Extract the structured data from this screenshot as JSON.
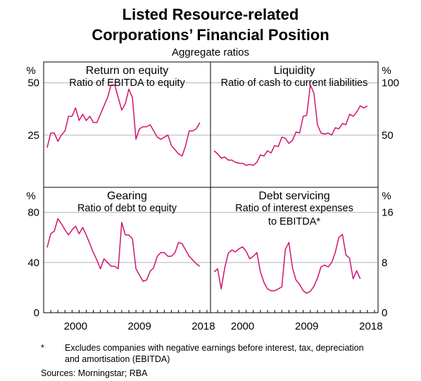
{
  "title_line1": "Listed Resource-related",
  "title_line2": "Corporations’ Financial Position",
  "subtitle": "Aggregate ratios",
  "line_color": "#d0146f",
  "footnote_marker": "*",
  "footnote_text": "Excludes companies with negative earnings before interest, tax, depreciation and amortisation (EBITDA)",
  "sources": "Sources:  Morningstar; RBA",
  "x_ticks": [
    "2000",
    "2009",
    "2018"
  ],
  "chart_data": [
    {
      "type": "line",
      "title": "Return on equity",
      "subtitle": [
        "Ratio of EBITDA to equity"
      ],
      "unit": "%",
      "axis_side": "left",
      "ylim": [
        0,
        60
      ],
      "yticks": [
        "25",
        "50"
      ],
      "ytick_values": [
        25,
        50
      ],
      "x": [
        1996.5,
        1997,
        1997.5,
        1998,
        1998.5,
        1999,
        1999.5,
        2000,
        2000.5,
        2001,
        2001.5,
        2002,
        2002.5,
        2003,
        2003.5,
        2004,
        2004.5,
        2005,
        2005.5,
        2006,
        2006.5,
        2007,
        2007.5,
        2008,
        2008.5,
        2009,
        2009.5,
        2010,
        2010.5,
        2011,
        2011.5,
        2012,
        2012.5,
        2013,
        2013.5,
        2014,
        2014.5,
        2015,
        2015.5,
        2016,
        2016.5,
        2017,
        2017.5,
        2018,
        2018.5
      ],
      "values": [
        19,
        26,
        26,
        22,
        25,
        27,
        34,
        34,
        38,
        32,
        35,
        32,
        34,
        31,
        31,
        35,
        39,
        43,
        49,
        49,
        43,
        37,
        40,
        47,
        43,
        23,
        28,
        29,
        29,
        30,
        27,
        24,
        23,
        24,
        25,
        20,
        18,
        16,
        15,
        20,
        27,
        27,
        28,
        31,
        null
      ],
      "series": [
        {
          "name": ""
        }
      ]
    },
    {
      "type": "line",
      "title": "Liquidity",
      "subtitle": [
        "Ratio of cash to current liabilities"
      ],
      "unit": "%",
      "axis_side": "right",
      "ylim": [
        0,
        120
      ],
      "yticks": [
        "50",
        "100"
      ],
      "ytick_values": [
        50,
        100
      ],
      "x": [
        1996.5,
        1997,
        1997.5,
        1998,
        1998.5,
        1999,
        1999.5,
        2000,
        2000.5,
        2001,
        2001.5,
        2002,
        2002.5,
        2003,
        2003.5,
        2004,
        2004.5,
        2005,
        2005.5,
        2006,
        2006.5,
        2007,
        2007.5,
        2008,
        2008.5,
        2009,
        2009.5,
        2010,
        2010.5,
        2011,
        2011.5,
        2012,
        2012.5,
        2013,
        2013.5,
        2014,
        2014.5,
        2015,
        2015.5,
        2016,
        2016.5,
        2017,
        2017.5,
        2018,
        2018.5
      ],
      "values": [
        35,
        32,
        28,
        29,
        26,
        26,
        24,
        23,
        23,
        21,
        22,
        21,
        24,
        31,
        30,
        35,
        33,
        40,
        39,
        48,
        47,
        42,
        45,
        53,
        52,
        68,
        69,
        98,
        90,
        60,
        52,
        51,
        52,
        50,
        57,
        56,
        61,
        60,
        70,
        68,
        72,
        78,
        76,
        78,
        null
      ],
      "series": [
        {
          "name": ""
        }
      ]
    },
    {
      "type": "line",
      "title": "Gearing",
      "subtitle": [
        "Ratio of debt to equity"
      ],
      "unit": "%",
      "axis_side": "left",
      "ylim": [
        0,
        100
      ],
      "yticks": [
        "0",
        "40",
        "80"
      ],
      "ytick_values": [
        0,
        40,
        80
      ],
      "x": [
        1996.5,
        1997,
        1997.5,
        1998,
        1998.5,
        1999,
        1999.5,
        2000,
        2000.5,
        2001,
        2001.5,
        2002,
        2002.5,
        2003,
        2003.5,
        2004,
        2004.5,
        2005,
        2005.5,
        2006,
        2006.5,
        2007,
        2007.5,
        2008,
        2008.5,
        2009,
        2009.5,
        2010,
        2010.5,
        2011,
        2011.5,
        2012,
        2012.5,
        2013,
        2013.5,
        2014,
        2014.5,
        2015,
        2015.5,
        2016,
        2016.5,
        2017,
        2017.5,
        2018,
        2018.5
      ],
      "values": [
        52,
        63,
        65,
        75,
        71,
        66,
        62,
        66,
        69,
        63,
        68,
        62,
        55,
        48,
        42,
        35,
        43,
        40,
        37,
        37,
        35,
        72,
        62,
        62,
        59,
        35,
        30,
        25,
        26,
        33,
        36,
        45,
        48,
        48,
        45,
        45,
        48,
        56,
        55,
        50,
        45,
        42,
        39,
        37,
        null
      ],
      "series": [
        {
          "name": ""
        }
      ]
    },
    {
      "type": "line",
      "title": "Debt servicing",
      "subtitle": [
        "Ratio of interest expenses",
        "to EBITDA*"
      ],
      "unit": "%",
      "axis_side": "right",
      "ylim": [
        0,
        20
      ],
      "yticks": [
        "0",
        "8",
        "16"
      ],
      "ytick_values": [
        0,
        8,
        16
      ],
      "x": [
        1996.5,
        1997,
        1997.5,
        1998,
        1998.5,
        1999,
        1999.5,
        2000,
        2000.5,
        2001,
        2001.5,
        2002,
        2002.5,
        2003,
        2003.5,
        2004,
        2004.5,
        2005,
        2005.5,
        2006,
        2006.5,
        2007,
        2007.5,
        2008,
        2008.5,
        2009,
        2009.5,
        2010,
        2010.5,
        2011,
        2011.5,
        2012,
        2012.5,
        2013,
        2013.5,
        2014,
        2014.5,
        2015,
        2015.5,
        2016,
        2016.5,
        2017,
        2017.5,
        2018,
        2018.5
      ],
      "values": [
        6.5,
        7,
        3.8,
        7.2,
        9.5,
        10,
        9.7,
        10.2,
        10.5,
        9.8,
        8.6,
        9,
        9.6,
        6.5,
        4.8,
        3.8,
        3.5,
        3.5,
        3.8,
        4.1,
        10.1,
        11.2,
        7.1,
        5.2,
        4.5,
        3.5,
        3.1,
        3.4,
        4.2,
        5.5,
        7.3,
        7.6,
        7.3,
        8,
        9.6,
        12,
        12.5,
        9.2,
        8.7,
        5.4,
        6.7,
        5.4,
        null,
        null,
        null
      ],
      "series": [
        {
          "name": ""
        }
      ]
    }
  ]
}
